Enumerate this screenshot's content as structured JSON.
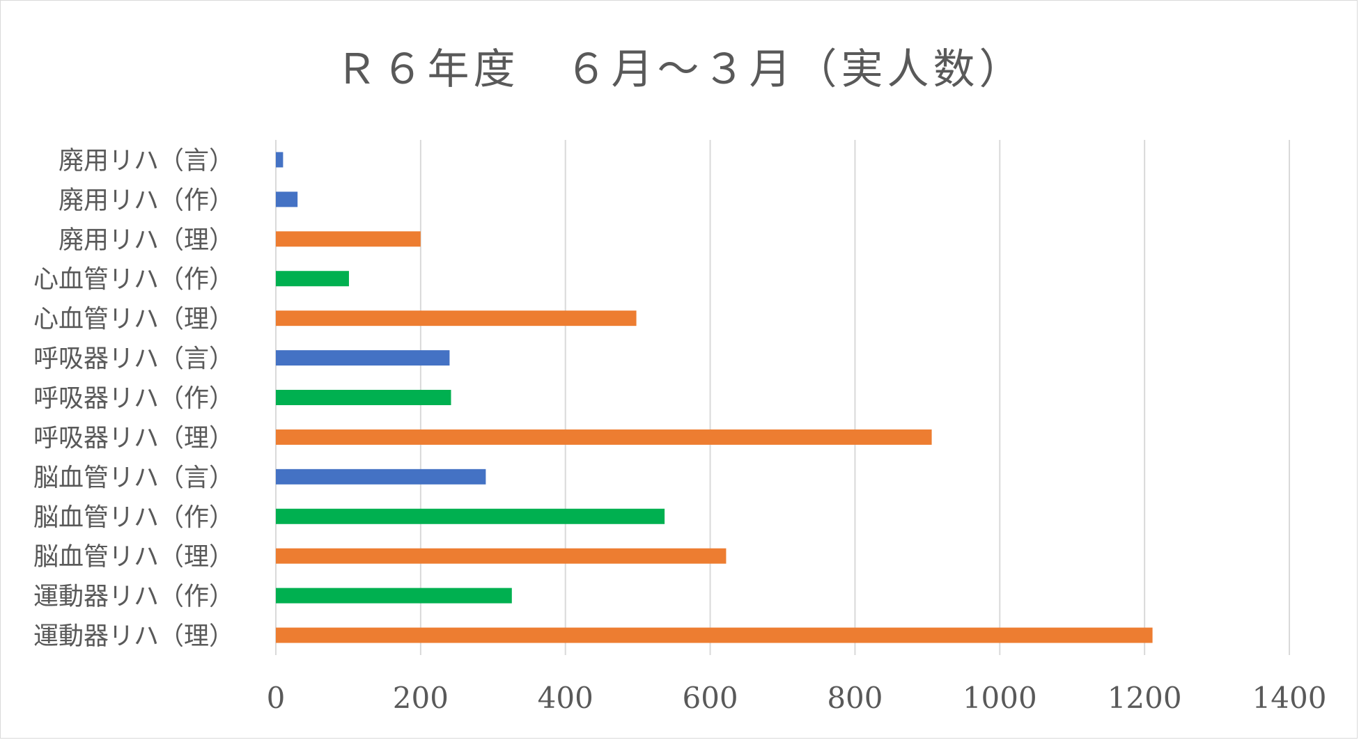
{
  "chart_data": {
    "type": "bar",
    "orientation": "horizontal",
    "title": "Ｒ６年度　６月～３月（実人数）",
    "categories": [
      "廃用リハ（言）",
      "廃用リハ（作）",
      "廃用リハ（理）",
      "心血管リハ（作）",
      "心血管リハ（理）",
      "呼吸器リハ（言）",
      "呼吸器リハ（作）",
      "呼吸器リハ（理）",
      "脳血管リハ（言）",
      "脳血管リハ（作）",
      "脳血管リハ（理）",
      "運動器リハ（作）",
      "運動器リハ（理）"
    ],
    "values": [
      10,
      30,
      200,
      101,
      498,
      240,
      242,
      906,
      290,
      537,
      622,
      326,
      1211
    ],
    "colors": [
      "#4472c4",
      "#4472c4",
      "#ed7d31",
      "#00b050",
      "#ed7d31",
      "#4472c4",
      "#00b050",
      "#ed7d31",
      "#4472c4",
      "#00b050",
      "#ed7d31",
      "#00b050",
      "#ed7d31"
    ],
    "xlim": [
      0,
      1400
    ],
    "x_ticks": [
      "0",
      "200",
      "400",
      "600",
      "800",
      "1000",
      "1200",
      "1400"
    ],
    "grid": true,
    "legend": "none"
  }
}
